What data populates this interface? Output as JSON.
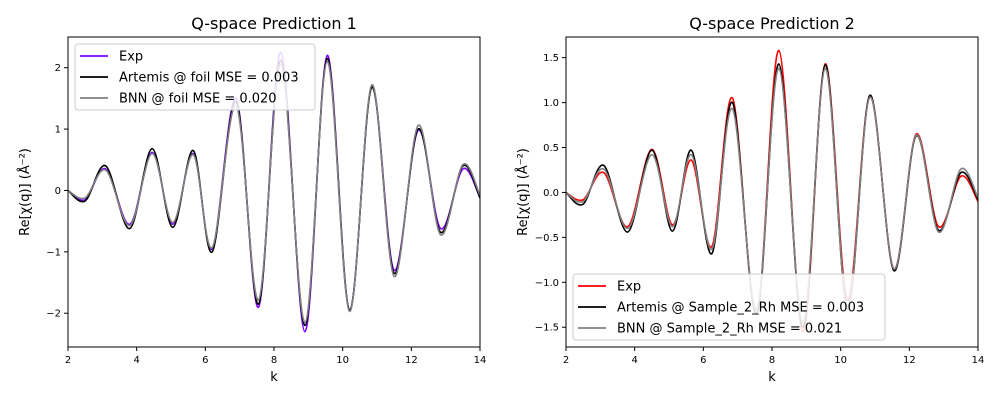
{
  "chart_data": [
    {
      "type": "line",
      "title": "Q-space Prediction 1",
      "xlabel": "k",
      "ylabel": "Re[χ(q)] (Å⁻²)",
      "xlim": [
        2,
        14
      ],
      "ylim": [
        -2.55,
        2.5
      ],
      "xticks": [
        "2",
        "4",
        "6",
        "8",
        "10",
        "12",
        "14"
      ],
      "yticks": [
        {
          "value": -2,
          "label": "−2"
        },
        {
          "value": -1,
          "label": "−1"
        },
        {
          "value": 0,
          "label": "0"
        },
        {
          "value": 1,
          "label": "1"
        },
        {
          "value": 2,
          "label": "2"
        }
      ],
      "legend_position": "top-left",
      "x": [
        2.0,
        2.5,
        3.1,
        3.8,
        4.45,
        5.05,
        5.65,
        6.2,
        6.9,
        7.55,
        8.2,
        8.9,
        9.55,
        10.2,
        10.85,
        11.5,
        12.2,
        12.85,
        13.5,
        14.0
      ],
      "series": [
        {
          "name": "Exp",
          "color": "#7f00ff",
          "values": [
            0.0,
            -0.15,
            0.35,
            -0.55,
            0.62,
            -0.55,
            0.6,
            -0.95,
            1.5,
            -1.9,
            2.25,
            -2.3,
            2.2,
            -1.95,
            1.7,
            -1.3,
            0.98,
            -0.62,
            0.35,
            -0.12
          ]
        },
        {
          "name": "Artemis @ foil MSE = 0.003",
          "color": "#000000",
          "values": [
            0.0,
            -0.17,
            0.4,
            -0.62,
            0.68,
            -0.6,
            0.65,
            -1.0,
            1.45,
            -1.85,
            2.12,
            -2.2,
            2.15,
            -1.95,
            1.68,
            -1.35,
            1.0,
            -0.68,
            0.4,
            -0.12
          ]
        },
        {
          "name": "BNN @ foil MSE = 0.020",
          "color": "#808080",
          "values": [
            0.0,
            -0.12,
            0.33,
            -0.57,
            0.6,
            -0.52,
            0.58,
            -0.93,
            1.38,
            -1.78,
            2.05,
            -2.15,
            2.1,
            -1.97,
            1.72,
            -1.4,
            1.06,
            -0.72,
            0.42,
            -0.08
          ]
        }
      ]
    },
    {
      "type": "line",
      "title": "Q-space Prediction 2",
      "xlabel": "k",
      "ylabel": "Re[χ(q)] (Å⁻²)",
      "xlim": [
        2,
        14
      ],
      "ylim": [
        -1.72,
        1.73
      ],
      "xticks": [
        "2",
        "4",
        "6",
        "8",
        "10",
        "12",
        "14"
      ],
      "yticks": [
        {
          "value": -1.5,
          "label": "−1.5"
        },
        {
          "value": -1.0,
          "label": "−1.0"
        },
        {
          "value": -0.5,
          "label": "−0.5"
        },
        {
          "value": 0.0,
          "label": "0.0"
        },
        {
          "value": 0.5,
          "label": "0.5"
        },
        {
          "value": 1.0,
          "label": "1.0"
        },
        {
          "value": 1.5,
          "label": "1.5"
        }
      ],
      "legend_position": "bottom-left",
      "x": [
        2.0,
        2.5,
        3.1,
        3.8,
        4.5,
        5.1,
        5.65,
        6.25,
        6.85,
        7.55,
        8.2,
        8.9,
        9.55,
        10.2,
        10.85,
        11.55,
        12.2,
        12.85,
        13.5,
        14.0
      ],
      "series": [
        {
          "name": "Exp",
          "color": "#ff0000",
          "values": [
            0.0,
            -0.08,
            0.22,
            -0.38,
            0.48,
            -0.36,
            0.36,
            -0.6,
            1.05,
            -1.35,
            1.58,
            -1.55,
            1.43,
            -1.2,
            1.08,
            -0.85,
            0.65,
            -0.38,
            0.18,
            -0.1
          ]
        },
        {
          "name": "Artemis @ Sample_2_Rh MSE = 0.003",
          "color": "#000000",
          "values": [
            0.0,
            -0.13,
            0.3,
            -0.44,
            0.47,
            -0.43,
            0.47,
            -0.68,
            1.0,
            -1.35,
            1.43,
            -1.5,
            1.42,
            -1.3,
            1.08,
            -0.87,
            0.63,
            -0.42,
            0.22,
            -0.08
          ]
        },
        {
          "name": "BNN @ Sample_2_Rh MSE = 0.021",
          "color": "#808080",
          "values": [
            0.0,
            -0.1,
            0.26,
            -0.4,
            0.42,
            -0.38,
            0.42,
            -0.63,
            0.93,
            -1.3,
            1.38,
            -1.45,
            1.38,
            -1.28,
            1.06,
            -0.85,
            0.64,
            -0.44,
            0.26,
            -0.06
          ]
        }
      ]
    }
  ]
}
